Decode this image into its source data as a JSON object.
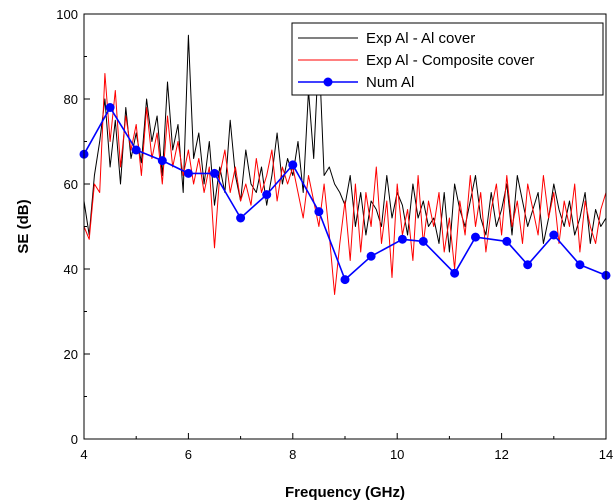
{
  "chart_data": {
    "type": "line",
    "title": "",
    "xlabel": "Frequency (GHz)",
    "ylabel": "SE (dB)",
    "xlim": [
      4,
      14
    ],
    "ylim": [
      0,
      100
    ],
    "x_ticks": [
      4,
      6,
      8,
      10,
      12,
      14
    ],
    "y_ticks": [
      0,
      20,
      40,
      60,
      80,
      100
    ],
    "grid": false,
    "legend_position": "top-right",
    "series": [
      {
        "name": "Exp Al - Al cover",
        "color": "#000000",
        "style": "line",
        "x": [
          4.0,
          4.1,
          4.2,
          4.3,
          4.4,
          4.5,
          4.6,
          4.7,
          4.8,
          4.9,
          5.0,
          5.1,
          5.2,
          5.3,
          5.4,
          5.5,
          5.6,
          5.7,
          5.8,
          5.9,
          6.0,
          6.1,
          6.2,
          6.3,
          6.4,
          6.5,
          6.6,
          6.7,
          6.8,
          6.9,
          7.0,
          7.1,
          7.2,
          7.3,
          7.4,
          7.5,
          7.6,
          7.7,
          7.8,
          7.9,
          8.0,
          8.1,
          8.2,
          8.3,
          8.4,
          8.5,
          8.6,
          8.7,
          8.8,
          8.9,
          9.0,
          9.1,
          9.2,
          9.3,
          9.4,
          9.5,
          9.6,
          9.7,
          9.8,
          9.9,
          10.0,
          10.1,
          10.2,
          10.3,
          10.4,
          10.5,
          10.6,
          10.7,
          10.8,
          10.9,
          11.0,
          11.1,
          11.2,
          11.3,
          11.4,
          11.5,
          11.6,
          11.7,
          11.8,
          11.9,
          12.0,
          12.1,
          12.2,
          12.3,
          12.4,
          12.5,
          12.6,
          12.7,
          12.8,
          12.9,
          13.0,
          13.1,
          13.2,
          13.3,
          13.4,
          13.5,
          13.6,
          13.7,
          13.8,
          13.9,
          14.0
        ],
        "y": [
          56,
          48,
          62,
          70,
          80,
          64,
          75,
          60,
          78,
          66,
          72,
          65,
          80,
          70,
          76,
          62,
          84,
          68,
          74,
          58,
          95,
          66,
          72,
          60,
          70,
          55,
          64,
          58,
          75,
          62,
          56,
          68,
          60,
          58,
          64,
          55,
          62,
          72,
          60,
          66,
          62,
          70,
          58,
          82,
          66,
          92,
          62,
          64,
          60,
          58,
          55,
          62,
          50,
          58,
          48,
          56,
          54,
          50,
          62,
          52,
          58,
          55,
          48,
          60,
          52,
          56,
          50,
          52,
          46,
          58,
          44,
          60,
          54,
          50,
          56,
          62,
          52,
          48,
          58,
          50,
          54,
          60,
          48,
          62,
          56,
          50,
          54,
          58,
          46,
          52,
          60,
          54,
          50,
          56,
          48,
          52,
          58,
          46,
          54,
          50,
          52
        ]
      },
      {
        "name": "Exp Al - Composite cover",
        "color": "#ff0000",
        "style": "line",
        "x": [
          4.0,
          4.1,
          4.2,
          4.3,
          4.4,
          4.5,
          4.6,
          4.7,
          4.8,
          4.9,
          5.0,
          5.1,
          5.2,
          5.3,
          5.4,
          5.5,
          5.6,
          5.7,
          5.8,
          5.9,
          6.0,
          6.1,
          6.2,
          6.3,
          6.4,
          6.5,
          6.6,
          6.7,
          6.8,
          6.9,
          7.0,
          7.1,
          7.2,
          7.3,
          7.4,
          7.5,
          7.6,
          7.7,
          7.8,
          7.9,
          8.0,
          8.1,
          8.2,
          8.3,
          8.4,
          8.5,
          8.6,
          8.7,
          8.8,
          8.9,
          9.0,
          9.1,
          9.2,
          9.3,
          9.4,
          9.5,
          9.6,
          9.7,
          9.8,
          9.9,
          10.0,
          10.1,
          10.2,
          10.3,
          10.4,
          10.5,
          10.6,
          10.7,
          10.8,
          10.9,
          11.0,
          11.1,
          11.2,
          11.3,
          11.4,
          11.5,
          11.6,
          11.7,
          11.8,
          11.9,
          12.0,
          12.1,
          12.2,
          12.3,
          12.4,
          12.5,
          12.6,
          12.7,
          12.8,
          12.9,
          13.0,
          13.1,
          13.2,
          13.3,
          13.4,
          13.5,
          13.6,
          13.7,
          13.8,
          13.9,
          14.0
        ],
        "y": [
          50,
          47,
          60,
          58,
          86,
          70,
          82,
          64,
          76,
          68,
          74,
          62,
          78,
          66,
          72,
          60,
          76,
          64,
          70,
          62,
          68,
          60,
          66,
          58,
          64,
          45,
          62,
          68,
          58,
          64,
          56,
          60,
          55,
          66,
          58,
          62,
          68,
          56,
          64,
          60,
          64,
          58,
          52,
          62,
          56,
          50,
          60,
          48,
          34,
          46,
          56,
          42,
          60,
          44,
          58,
          50,
          64,
          46,
          56,
          38,
          60,
          48,
          54,
          42,
          62,
          46,
          56,
          50,
          58,
          44,
          52,
          40,
          56,
          48,
          62,
          50,
          58,
          44,
          54,
          60,
          48,
          62,
          50,
          56,
          46,
          60,
          54,
          48,
          62,
          52,
          58,
          46,
          56,
          50,
          60,
          44,
          56,
          50,
          46,
          54,
          58
        ]
      },
      {
        "name": "Num Al",
        "color": "#0000ff",
        "style": "line-marker",
        "x": [
          4.0,
          4.5,
          5.0,
          5.5,
          6.0,
          6.5,
          7.0,
          7.5,
          8.0,
          8.5,
          9.0,
          9.5,
          10.1,
          10.5,
          11.1,
          11.5,
          12.1,
          12.5,
          13.0,
          13.5,
          14.0
        ],
        "y": [
          67,
          78,
          68,
          65.5,
          62.5,
          62.5,
          52,
          57.5,
          64.5,
          53.5,
          37.5,
          43,
          47,
          46.5,
          39,
          47.5,
          46.5,
          41,
          48,
          41,
          38.5
        ]
      }
    ]
  }
}
